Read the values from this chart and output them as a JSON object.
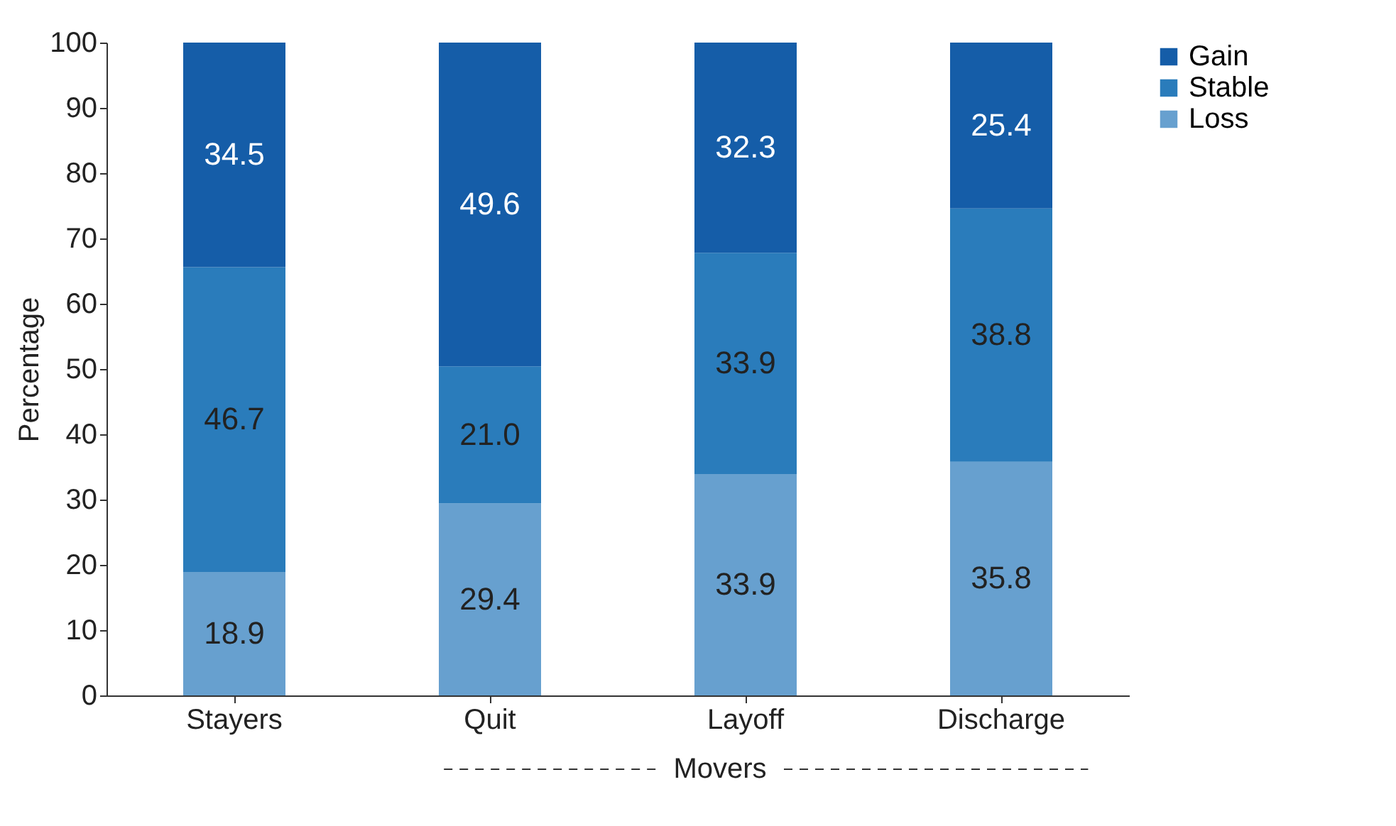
{
  "chart_data": {
    "type": "bar",
    "stacked": true,
    "ylabel": "Percentage",
    "categories": [
      "Stayers",
      "Quit",
      "Layoff",
      "Discharge"
    ],
    "ylim": [
      0,
      100
    ],
    "yticks": [
      0,
      10,
      20,
      30,
      40,
      50,
      60,
      70,
      80,
      90,
      100
    ],
    "grid": false,
    "legend": "right",
    "annotations": [
      "Movers"
    ],
    "series": [
      {
        "name": "Loss",
        "color": "#67a0cf",
        "values": [
          18.9,
          29.4,
          33.9,
          35.8
        ],
        "value_labels": [
          "18.9",
          "29.4",
          "33.9",
          "35.8"
        ]
      },
      {
        "name": "Stable",
        "color": "#2a7cbb",
        "values": [
          46.7,
          21.0,
          33.9,
          38.8
        ],
        "value_labels": [
          "46.7",
          "21.0",
          "33.9",
          "38.8"
        ]
      },
      {
        "name": "Gain",
        "color": "#155da8",
        "values": [
          34.5,
          49.6,
          32.3,
          25.4
        ],
        "value_labels": [
          "34.5",
          "49.6",
          "32.3",
          "25.4"
        ]
      }
    ]
  }
}
